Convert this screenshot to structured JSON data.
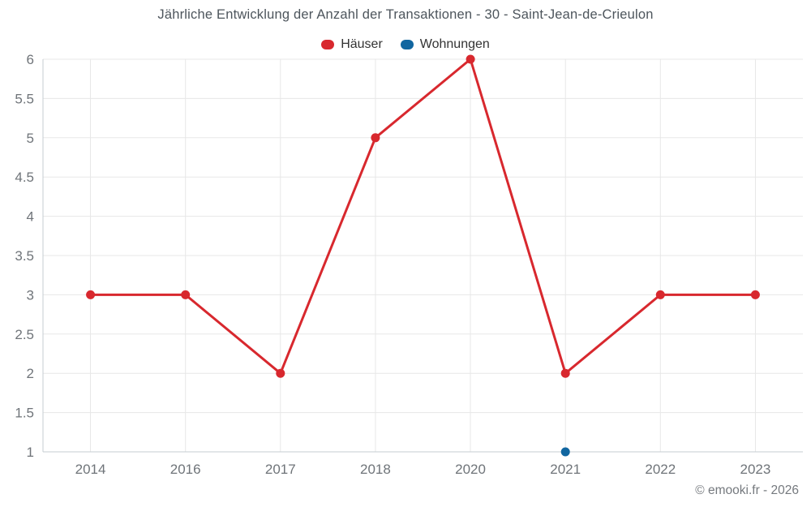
{
  "chart_data": {
    "type": "line",
    "title": "Jährliche Entwicklung der Anzahl der Transaktionen - 30 - Saint-Jean-de-Crieulon",
    "categories": [
      "2014",
      "2016",
      "2017",
      "2018",
      "2020",
      "2021",
      "2022",
      "2023"
    ],
    "series": [
      {
        "name": "Häuser",
        "color": "#d8282e",
        "values": [
          3,
          3,
          2,
          5,
          6,
          2,
          3,
          3
        ]
      },
      {
        "name": "Wohnungen",
        "color": "#1166a0",
        "values": [
          null,
          null,
          null,
          null,
          null,
          1,
          null,
          null
        ]
      }
    ],
    "xlabel": "",
    "ylabel": "",
    "ylim": [
      1,
      6
    ],
    "y_tick_step": 0.5,
    "grid": true,
    "legend_position": "top"
  },
  "colors": {
    "grid": "#e7e7e7",
    "axis": "#c6ccd2",
    "tick_label": "#6f7479",
    "title": "#4d555c"
  },
  "footer": {
    "credit": "© emooki.fr - 2026"
  }
}
